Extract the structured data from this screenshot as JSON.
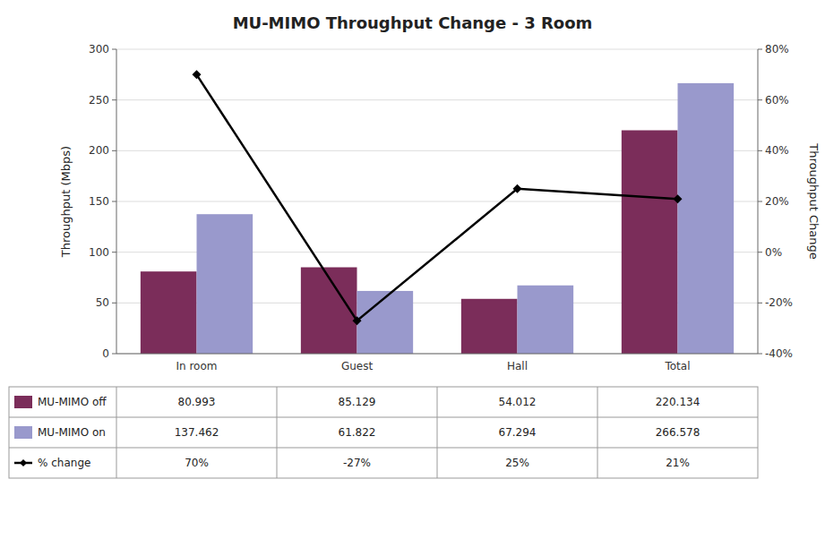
{
  "chart_data": {
    "type": "bar",
    "title": "MU-MIMO Throughput Change - 3 Room",
    "categories": [
      "In room",
      "Guest",
      "Hall",
      "Total"
    ],
    "series": [
      {
        "name": "MU-MIMO off",
        "color": "#7B2D5A",
        "values": [
          80.993,
          85.129,
          54.012,
          220.134
        ]
      },
      {
        "name": "MU-MIMO on",
        "color": "#9999CC",
        "values": [
          137.462,
          61.822,
          67.294,
          266.578
        ]
      },
      {
        "name": "% change",
        "type": "line",
        "axis": "y2",
        "color": "#000000",
        "marker": "diamond",
        "values": [
          0.7,
          -0.27,
          0.25,
          0.21
        ],
        "value_labels": [
          "70%",
          "-27%",
          "25%",
          "21%"
        ]
      }
    ],
    "y_label": "Throughput (Mbps)",
    "y2_label": "Throughput Change",
    "ylim": [
      0,
      300
    ],
    "yticks": [
      0,
      50,
      100,
      150,
      200,
      250,
      300
    ],
    "y2lim": [
      -0.4,
      0.8
    ],
    "y2ticks": [
      {
        "value": -0.4,
        "label": "-40%"
      },
      {
        "value": -0.2,
        "label": "-20%"
      },
      {
        "value": 0.0,
        "label": "0%"
      },
      {
        "value": 0.2,
        "label": "20%"
      },
      {
        "value": 0.4,
        "label": "40%"
      },
      {
        "value": 0.6,
        "label": "60%"
      },
      {
        "value": 0.8,
        "label": "80%"
      }
    ],
    "grid": true
  }
}
